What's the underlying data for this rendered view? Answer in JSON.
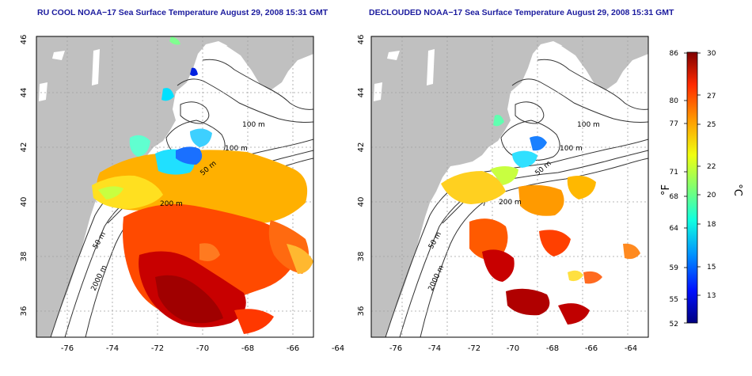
{
  "maps": [
    {
      "title": "RU COOL NOAA−17 Sea Surface Temperature August 29, 2008 15:31 GMT",
      "x_ticks": [
        "-76",
        "-74",
        "-72",
        "-70",
        "-68",
        "-66",
        "-64"
      ],
      "y_ticks": [
        "46",
        "44",
        "42",
        "40",
        "38",
        "36"
      ],
      "contour_labels": [
        "100 m",
        "100 m",
        "50 m",
        "200 m",
        "50 m",
        "2000 m"
      ]
    },
    {
      "title": "DECLOUDED NOAA−17 Sea Surface Temperature August 29, 2008 15:31 GMT",
      "x_ticks": [
        "-76",
        "-74",
        "-72",
        "-70",
        "-68",
        "-66",
        "-64"
      ],
      "y_ticks": [
        "46",
        "44",
        "42",
        "40",
        "38",
        "36"
      ],
      "contour_labels": [
        "100 m",
        "100 m",
        "50 m",
        "200 m",
        "50 m",
        "2000 m"
      ]
    }
  ],
  "colorbar": {
    "fahrenheit_ticks": [
      "86",
      "80",
      "77",
      "71",
      "68",
      "64",
      "59",
      "55",
      "52"
    ],
    "celsius_ticks": [
      "30",
      "27",
      "25",
      "22",
      "20",
      "18",
      "15",
      "13"
    ],
    "label_f": "°F",
    "label_c": "°C"
  },
  "colors": {
    "land": "#c0c0c0",
    "title": "#1b1b9e"
  }
}
